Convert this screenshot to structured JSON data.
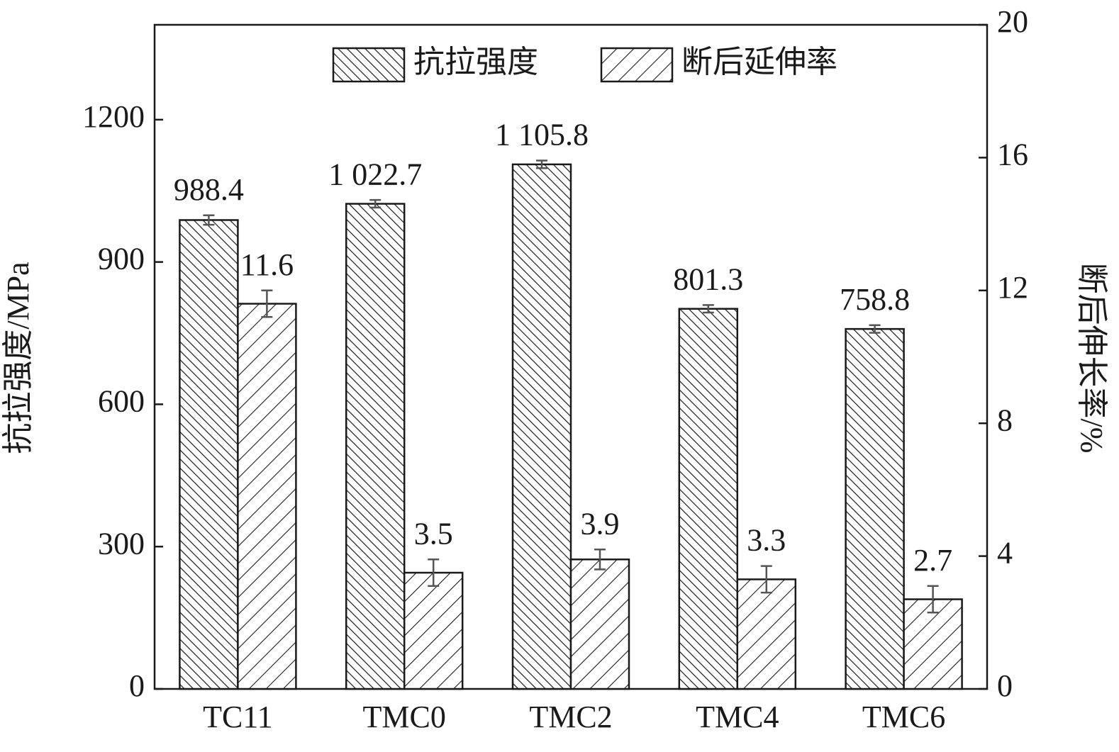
{
  "chart_data": {
    "type": "bar",
    "categories": [
      "TC11",
      "TMC0",
      "TMC2",
      "TMC4",
      "TMC6"
    ],
    "y_label": "抗拉强度/MPa",
    "y2_label": "断后伸长率/%",
    "ylim": [
      0,
      1400
    ],
    "yticks": [
      0,
      300,
      600,
      900,
      1200
    ],
    "y2lim": [
      0,
      20
    ],
    "y2ticks": [
      0,
      4,
      8,
      12,
      16,
      20
    ],
    "legend": "upper center",
    "series": [
      {
        "name": "抗拉强度",
        "color": "#1a1a1a",
        "hatch": "backslash",
        "values": [
          988.4,
          1022.7,
          1105.8,
          801.3,
          758.8
        ],
        "value_labels": [
          "988.4",
          "1 022.7",
          "1 105.8",
          "801.3",
          "758.8"
        ],
        "errors": [
          10,
          8,
          8,
          8,
          8
        ]
      },
      {
        "name": "断后延伸率",
        "color": "#1a1a1a",
        "hatch": "slash",
        "axis": "y2",
        "values": [
          11.6,
          3.5,
          3.9,
          3.3,
          2.7
        ],
        "errors": [
          0.4,
          0.4,
          0.3,
          0.4,
          0.4
        ]
      }
    ]
  }
}
